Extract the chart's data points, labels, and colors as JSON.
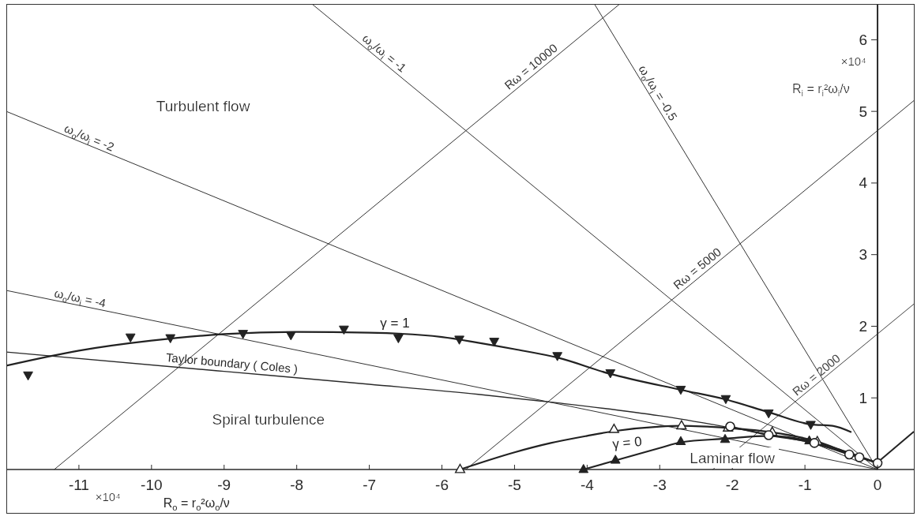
{
  "chart_data": {
    "type": "line",
    "xlabel": "R$_{o}$ = r$_{o}$²ω$_{o}$/ν",
    "ylabel": "R$_{i}$ = r$_{i}$²ω$_{i}$/ν",
    "annotations": [
      "Turbulent flow",
      "Spiral turbulence",
      "Laminar flow",
      "×10⁴",
      "×10⁴"
    ],
    "xlim": [
      -12,
      0.5
    ],
    "xticks": [
      -11,
      -10,
      -9,
      -8,
      -7,
      -6,
      -5,
      -4,
      -3,
      -2,
      -1,
      0
    ],
    "ylim": [
      0,
      6.5
    ],
    "yticks": [
      1,
      2,
      3,
      4,
      5,
      6
    ],
    "series": [
      {
        "name": "ω$_{o}$/ω$_{i}$ = -1",
        "color": "#333333",
        "x": [
          -7.79,
          0
        ],
        "values": [
          6.5,
          0
        ]
      },
      {
        "name": "ω$_{o}$/ω$_{i}$ = -2",
        "color": "#333333",
        "x": [
          -12,
          0
        ],
        "values": [
          5.0,
          0
        ]
      },
      {
        "name": "ω$_{o}$/ω$_{i}$ = -4",
        "color": "#333333",
        "x": [
          -12,
          0
        ],
        "values": [
          2.5,
          0
        ]
      },
      {
        "name": "ω$_{o}$/ω$_{i}$ = -0.5",
        "color": "#333333",
        "x": [
          -3.9,
          0
        ],
        "values": [
          6.5,
          0
        ]
      },
      {
        "name": "Rω = 10000",
        "color": "#333333",
        "x": [
          -11.34,
          -3.55
        ],
        "values": [
          0,
          6.5
        ]
      },
      {
        "name": "Rω = 5000",
        "color": "#333333",
        "x": [
          -5.67,
          0.5
        ],
        "values": [
          0,
          5.15
        ]
      },
      {
        "name": "Rω = 2000",
        "color": "#444444",
        "x": [
          -2.27,
          0.5
        ],
        "values": [
          0,
          2.31
        ]
      },
      {
        "name": "Taylor boundary ( Coles )",
        "color": "#2a2a2a",
        "x": [
          -12,
          -9,
          -7,
          -5.5,
          -4.5,
          -3,
          -2,
          -1.5,
          -1,
          -0.4,
          0
        ],
        "values": [
          1.64,
          1.37,
          1.19,
          1.05,
          0.94,
          0.75,
          0.58,
          0.49,
          0.39,
          0.22,
          0.09
        ]
      },
      {
        "name": "γ = 1",
        "color": "#222222",
        "x": [
          -12,
          -11,
          -10,
          -9,
          -8,
          -7,
          -6,
          -5.5,
          -5,
          -4.4,
          -3.7,
          -2.7,
          -2.1,
          -1.5,
          -0.92,
          -0.62,
          -0.36
        ],
        "values": [
          1.45,
          1.66,
          1.8,
          1.89,
          1.92,
          1.91,
          1.85,
          1.77,
          1.68,
          1.56,
          1.34,
          1.11,
          0.98,
          0.8,
          0.63,
          0.61,
          0.52
        ]
      },
      {
        "type": "scatter",
        "marker": "triangle-down",
        "color": "#222222",
        "x": [
          -11.7,
          -10.29,
          -9.74,
          -8.74,
          -8.08,
          -7.35,
          -6.6,
          -5.76,
          -5.28,
          -4.41,
          -3.68,
          -2.71,
          -2.09,
          -1.5,
          -0.92
        ],
        "values": [
          1.32,
          1.85,
          1.84,
          1.9,
          1.88,
          1.96,
          1.84,
          1.82,
          1.79,
          1.59,
          1.35,
          1.12,
          0.99,
          0.79,
          0.63
        ]
      },
      {
        "name": "γ = 0",
        "color": "#222222",
        "x": [
          -5.75,
          -5,
          -4.5,
          -4,
          -3.6,
          -3,
          -2.7,
          -2.06,
          -1.45,
          -0.83,
          -0.4,
          0
        ],
        "values": [
          0,
          0.24,
          0.37,
          0.47,
          0.54,
          0.6,
          0.61,
          0.58,
          0.52,
          0.39,
          0.23,
          0.09
        ]
      },
      {
        "type": "scatter",
        "marker": "triangle-open",
        "color": "#222222",
        "x": [
          -5.75,
          -3.63,
          -2.7,
          -2.06,
          -1.45,
          -0.83
        ],
        "values": [
          0,
          0.56,
          0.61,
          0.58,
          0.52,
          0.39
        ]
      },
      {
        "color": "#222222",
        "x": [
          -4.05,
          -3.6,
          -3,
          -2.71,
          -2.1,
          -1.5,
          -0.94,
          -0.5,
          0
        ],
        "values": [
          0,
          0.13,
          0.3,
          0.38,
          0.43,
          0.47,
          0.4,
          0.27,
          0.09
        ]
      },
      {
        "type": "scatter",
        "marker": "triangle",
        "color": "#222222",
        "x": [
          -4.05,
          -3.61,
          -2.71,
          -2.1,
          -0.94
        ],
        "values": [
          0,
          0.13,
          0.39,
          0.42,
          0.4
        ]
      },
      {
        "marker": "circle-open",
        "color": "#222222",
        "x": [
          -2.03,
          -1.5,
          -0.87,
          -0.39,
          -0.25,
          0
        ],
        "values": [
          0.6,
          0.48,
          0.37,
          0.21,
          0.17,
          0.09
        ]
      },
      {
        "color": "#222222",
        "x": [
          0,
          0.5
        ],
        "values": [
          0.1,
          0.53
        ]
      }
    ]
  }
}
